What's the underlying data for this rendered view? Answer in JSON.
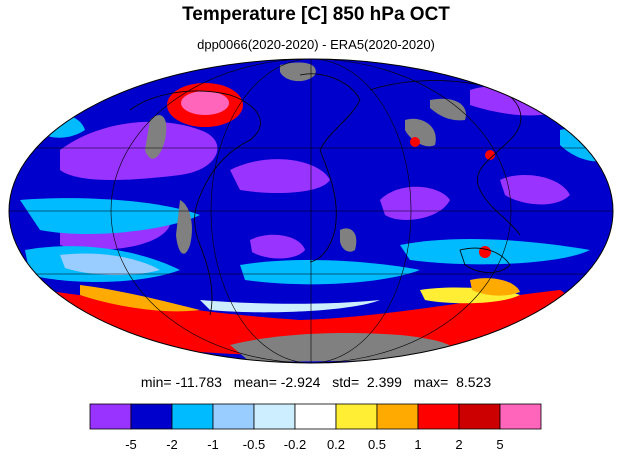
{
  "title": "Temperature [C] 850 hPa OCT",
  "subtitle": "dpp0066(2020-2020) - ERA5(2020-2020)",
  "stats": {
    "min": "min= -11.783",
    "mean": "mean= -2.924",
    "std": "std=  2.399",
    "max": "max=  8.523"
  },
  "colorbar": {
    "colors": [
      "#9933ff",
      "#0000cc",
      "#00bbff",
      "#99ccff",
      "#cceeff",
      "#ffffff",
      "#ffee33",
      "#ffaa00",
      "#ff0000",
      "#cc0000",
      "#ff66bb"
    ],
    "ticks": [
      "-5",
      "-2",
      "-1",
      "-0.5",
      "-0.2",
      "0.2",
      "0.5",
      "1",
      "2",
      "5"
    ]
  },
  "map_colors": {
    "ocean_base": "#0000cc",
    "land_missing": "#808080",
    "coastline": "#000000"
  }
}
